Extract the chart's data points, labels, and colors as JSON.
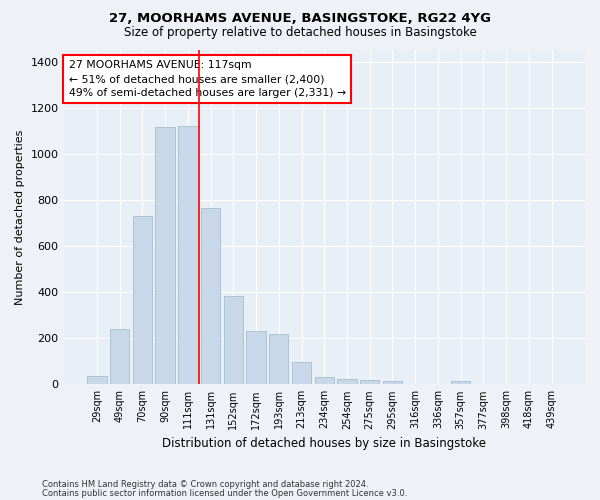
{
  "title1": "27, MOORHAMS AVENUE, BASINGSTOKE, RG22 4YG",
  "title2": "Size of property relative to detached houses in Basingstoke",
  "xlabel": "Distribution of detached houses by size in Basingstoke",
  "ylabel": "Number of detached properties",
  "bar_labels": [
    "29sqm",
    "49sqm",
    "70sqm",
    "90sqm",
    "111sqm",
    "131sqm",
    "152sqm",
    "172sqm",
    "193sqm",
    "213sqm",
    "234sqm",
    "254sqm",
    "275sqm",
    "295sqm",
    "316sqm",
    "336sqm",
    "357sqm",
    "377sqm",
    "398sqm",
    "418sqm",
    "439sqm"
  ],
  "bar_values": [
    35,
    240,
    730,
    1115,
    1120,
    765,
    385,
    230,
    220,
    95,
    30,
    25,
    20,
    15,
    3,
    0,
    15,
    0,
    0,
    0,
    0
  ],
  "bar_color": "#c8d8e8",
  "bar_edgecolor": "#a8bece",
  "vline_color": "red",
  "vline_pos": 4.5,
  "annotation_text": "27 MOORHAMS AVENUE: 117sqm\n← 51% of detached houses are smaller (2,400)\n49% of semi-detached houses are larger (2,331) →",
  "annotation_box_facecolor": "white",
  "annotation_box_edgecolor": "red",
  "ylim": [
    0,
    1450
  ],
  "yticks": [
    0,
    200,
    400,
    600,
    800,
    1000,
    1200,
    1400
  ],
  "footer1": "Contains HM Land Registry data © Crown copyright and database right 2024.",
  "footer2": "Contains public sector information licensed under the Open Government Licence v3.0.",
  "bg_color": "#eef2f7",
  "plot_bg_color": "#e8eff7"
}
